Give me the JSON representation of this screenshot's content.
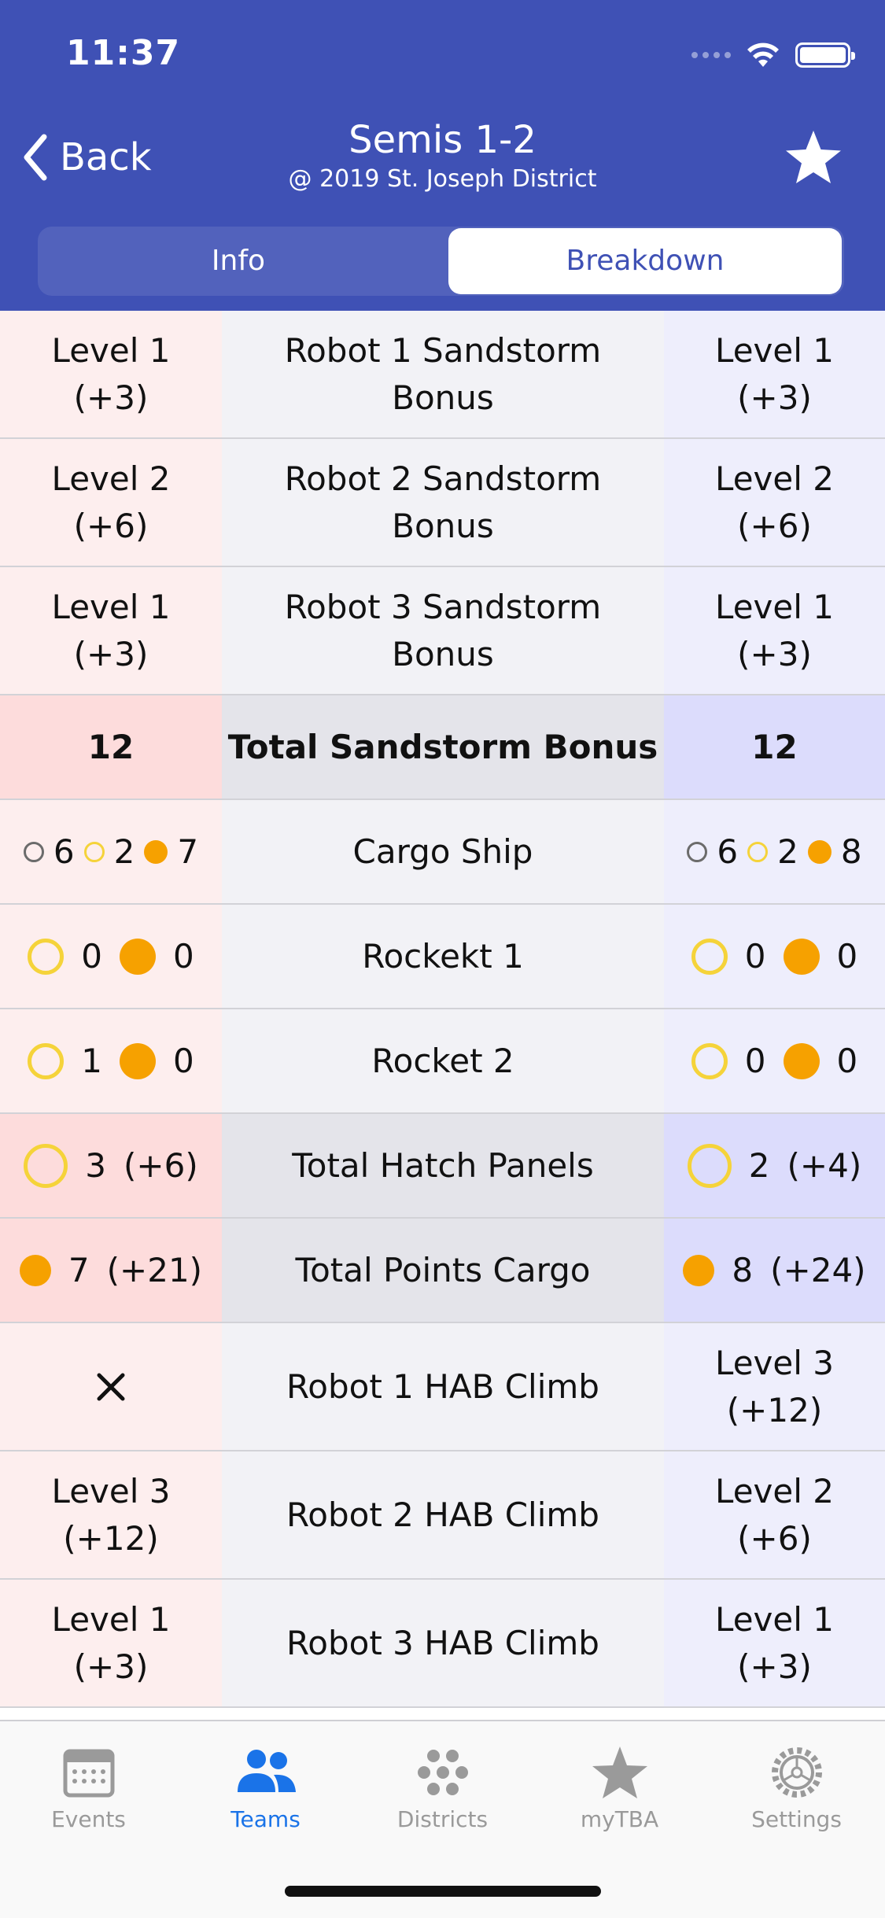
{
  "status_bar": {
    "time": "11:37"
  },
  "nav": {
    "back_label": "Back",
    "title": "Semis 1-2",
    "subtitle": "@ 2019 St. Joseph District",
    "favorite_icon": "star-icon"
  },
  "segments": {
    "info": "Info",
    "breakdown": "Breakdown",
    "selected": "Breakdown"
  },
  "colors": {
    "header": "#3f51b5",
    "hatch": "#f5d33a",
    "cargo": "#f6a100",
    "tab_active": "#1a73e8"
  },
  "rows": {
    "r1": {
      "red": "Level 1\n(+3)",
      "label": "Robot 1 Sandstorm\nBonus",
      "blue": "Level 1\n(+3)"
    },
    "r2": {
      "red": "Level 2\n(+6)",
      "label": "Robot 2 Sandstorm\nBonus",
      "blue": "Level 2\n(+6)"
    },
    "r3": {
      "red": "Level 1\n(+3)",
      "label": "Robot 3 Sandstorm\nBonus",
      "blue": "Level 1\n(+3)"
    },
    "total_sandstorm": {
      "red": "12",
      "label": "Total Sandstorm Bonus",
      "blue": "12"
    },
    "cargo_ship": {
      "label": "Cargo Ship",
      "red": {
        "null_hatch": "6",
        "hatch": "2",
        "cargo": "7"
      },
      "blue": {
        "null_hatch": "6",
        "hatch": "2",
        "cargo": "8"
      }
    },
    "rocket1": {
      "label": "Rockekt 1",
      "red": {
        "hatch": "0",
        "cargo": "0"
      },
      "blue": {
        "hatch": "0",
        "cargo": "0"
      }
    },
    "rocket2": {
      "label": "Rocket 2",
      "red": {
        "hatch": "1",
        "cargo": "0"
      },
      "blue": {
        "hatch": "0",
        "cargo": "0"
      }
    },
    "total_hatch": {
      "label": "Total Hatch Panels",
      "red": {
        "count": "3",
        "points": "(+6)"
      },
      "blue": {
        "count": "2",
        "points": "(+4)"
      }
    },
    "total_cargo": {
      "label": "Total Points Cargo",
      "red": {
        "count": "7",
        "points": "(+21)"
      },
      "blue": {
        "count": "8",
        "points": "(+24)"
      }
    },
    "hab1": {
      "red_icon": "cross-icon",
      "label": "Robot 1 HAB Climb",
      "blue": "Level 3\n(+12)"
    },
    "hab2": {
      "red": "Level 3\n(+12)",
      "label": "Robot 2 HAB Climb",
      "blue": "Level 2\n(+6)"
    },
    "hab3": {
      "red": "Level 1\n(+3)",
      "label": "Robot 3 HAB Climb",
      "blue": "Level 1\n(+3)"
    }
  },
  "tabs": [
    {
      "label": "Events",
      "icon": "calendar-icon"
    },
    {
      "label": "Teams",
      "icon": "people-icon",
      "active": true
    },
    {
      "label": "Districts",
      "icon": "districts-icon"
    },
    {
      "label": "myTBA",
      "icon": "star-icon"
    },
    {
      "label": "Settings",
      "icon": "gear-icon"
    }
  ]
}
